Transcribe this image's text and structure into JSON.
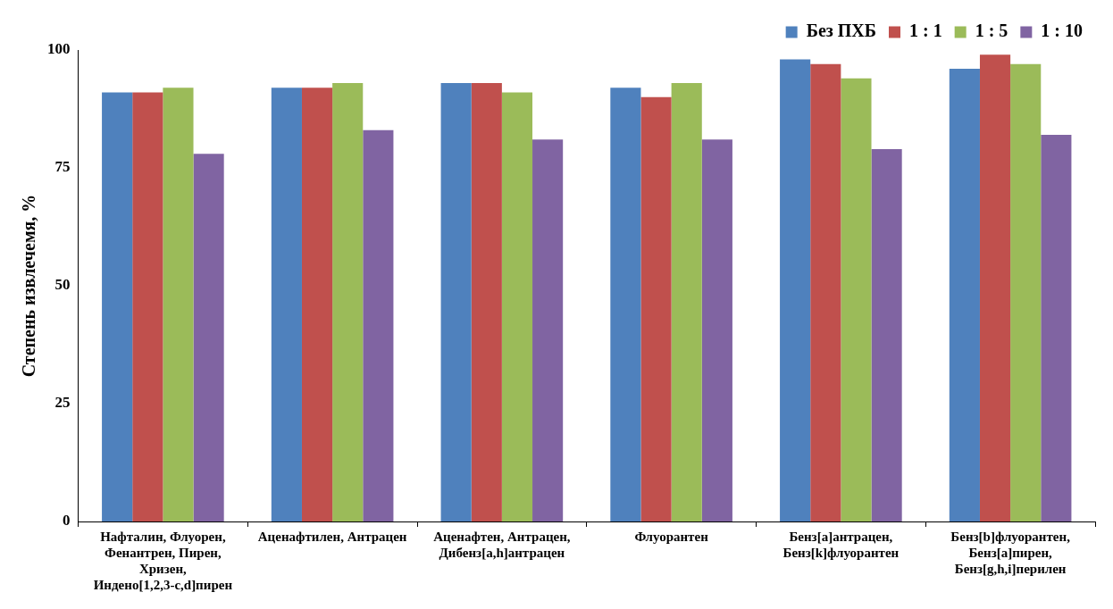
{
  "chart_data": {
    "type": "bar",
    "ylabel": "Степень извлечемя, %",
    "categories": [
      "Нафталин, Флуорен, Фенантрен, Пирен, Хризен, Индено[1,2,3-c,d]пирен",
      "Аценафтилен, Антрацен",
      "Аценафтен, Антрацен, Дибенз[a,h]антрацен",
      "Флуорантен",
      "Бенз[a]антрацен, Бенз[k]флуорантен",
      "Бенз[b]флуорантен, Бенз[a]пирен, Бенз[g,h,i]перилен"
    ],
    "series": [
      {
        "name": "Без ПХБ",
        "color": "#4f81bd",
        "values": [
          91,
          92,
          93,
          92,
          98,
          96
        ]
      },
      {
        "name": "1 : 1",
        "color": "#c0504d",
        "values": [
          91,
          92,
          93,
          90,
          97,
          99
        ]
      },
      {
        "name": "1 : 5",
        "color": "#9bbb59",
        "values": [
          92,
          93,
          91,
          93,
          94,
          97
        ]
      },
      {
        "name": "1 : 10",
        "color": "#8064a2",
        "values": [
          78,
          83,
          81,
          81,
          79,
          82
        ]
      }
    ],
    "ylim": [
      0,
      100
    ],
    "yticks": [
      0,
      25,
      50,
      75,
      100
    ],
    "grid": false,
    "legend": "top right"
  }
}
